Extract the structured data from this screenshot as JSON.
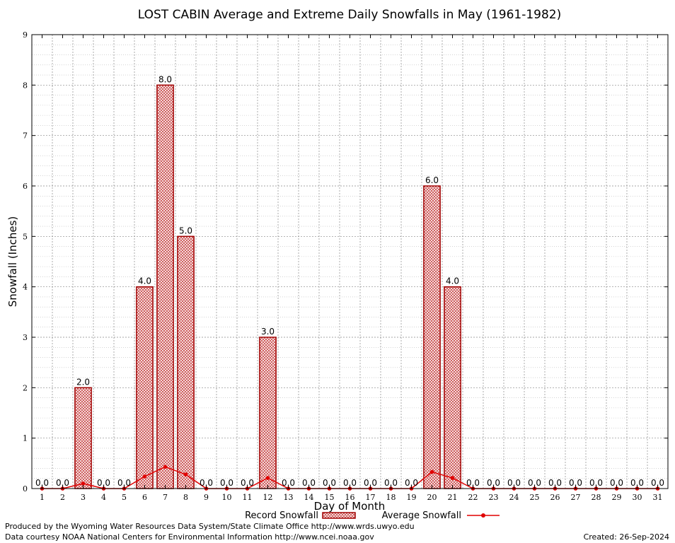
{
  "chart_data": {
    "type": "bar",
    "title": "LOST CABIN Average and Extreme Daily Snowfalls in May (1961-1982)",
    "xlabel": "Day of Month",
    "ylabel": "Snowfall (Inches)",
    "ylim": [
      0,
      9
    ],
    "yticks": [
      "0",
      "1",
      "2",
      "3",
      "4",
      "5",
      "6",
      "7",
      "8",
      "9"
    ],
    "categories": [
      "1",
      "2",
      "3",
      "4",
      "5",
      "6",
      "7",
      "8",
      "9",
      "10",
      "11",
      "12",
      "13",
      "14",
      "15",
      "16",
      "17",
      "18",
      "19",
      "20",
      "21",
      "22",
      "23",
      "24",
      "25",
      "26",
      "27",
      "28",
      "29",
      "30",
      "31"
    ],
    "series": [
      {
        "name": "Record Snowfall",
        "type": "bar",
        "values": [
          0.0,
          0.0,
          2.0,
          0.0,
          0.0,
          4.0,
          8.0,
          5.0,
          0.0,
          0.0,
          0.0,
          3.0,
          0.0,
          0.0,
          0.0,
          0.0,
          0.0,
          0.0,
          0.0,
          6.0,
          4.0,
          0.0,
          0.0,
          0.0,
          0.0,
          0.0,
          0.0,
          0.0,
          0.0,
          0.0,
          0.0
        ],
        "labels": [
          "0.0",
          "0.0",
          "2.0",
          "0.0",
          "0.0",
          "4.0",
          "8.0",
          "5.0",
          "0.0",
          "0.0",
          "0.0",
          "3.0",
          "0.0",
          "0.0",
          "0.0",
          "0.0",
          "0.0",
          "0.0",
          "0.0",
          "6.0",
          "4.0",
          "0.0",
          "0.0",
          "0.0",
          "0.0",
          "0.0",
          "0.0",
          "0.0",
          "0.0",
          "0.0",
          "0.0"
        ]
      },
      {
        "name": "Average Snowfall",
        "type": "line",
        "values": [
          0.0,
          0.0,
          0.1,
          0.0,
          0.0,
          0.24,
          0.43,
          0.28,
          0.0,
          0.0,
          0.0,
          0.21,
          0.0,
          0.0,
          0.0,
          0.0,
          0.0,
          0.0,
          0.0,
          0.33,
          0.21,
          0.0,
          0.0,
          0.0,
          0.0,
          0.0,
          0.0,
          0.0,
          0.0,
          0.0,
          0.0
        ]
      }
    ],
    "grid": true,
    "legend_position": "bottom",
    "colors": {
      "bar_border": "#a00000",
      "bar_hatch": "#c84848",
      "line": "#e00000",
      "grid_major": "#888888",
      "grid_minor": "#bbbbbb"
    }
  },
  "legend": {
    "record_label": "Record Snowfall",
    "average_label": "Average Snowfall"
  },
  "footer": {
    "produced_by": "Produced by the Wyoming Water Resources Data System/State Climate Office http://www.wrds.uwyo.edu",
    "data_courtesy": "Data courtesy NOAA National Centers for Environmental Information http://www.ncei.noaa.gov",
    "created": "Created: 26-Sep-2024"
  }
}
